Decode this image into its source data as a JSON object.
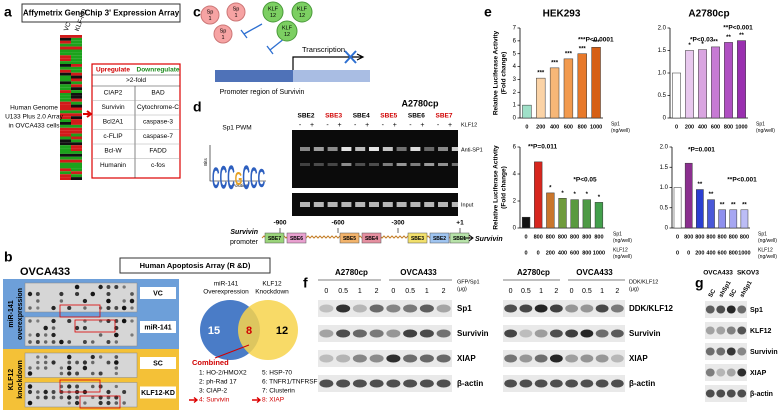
{
  "labels": [
    "a",
    "b",
    "c",
    "d",
    "e",
    "f",
    "g"
  ],
  "panel_a": {
    "title": "Affymetrix GeneChip 3' Expression Array",
    "columns": [
      "VC",
      "KLF-KD"
    ],
    "array": [
      "Human Genome",
      "U133 Plus 2.0 Array",
      "in OVCA433 cells"
    ],
    "table": {
      "header": [
        "Upregulate",
        "Downregulate"
      ],
      "header_colors": [
        "#d00000",
        "#1a8a1a"
      ],
      "threshold": ">2-fold",
      "rows": [
        [
          "CIAP2",
          "BAD"
        ],
        [
          "Survivin",
          "Cytochrome-C"
        ],
        [
          "Bcl2A1",
          "caspase-3"
        ],
        [
          "c-FLIP",
          "caspase-7"
        ],
        [
          "Bcl-W",
          "FADD"
        ],
        [
          "Humanin",
          "c-fos"
        ]
      ]
    }
  },
  "panel_b": {
    "cell_line": "OVCA433",
    "title": "Human Apoptosis Array (R &D)",
    "groups": [
      {
        "label": [
          "miR-141",
          "overexpression"
        ],
        "rows": [
          "VC",
          "miR-141"
        ],
        "color": "#6d9fd9"
      },
      {
        "label": [
          "KLF12",
          "knockdown"
        ],
        "rows": [
          "SC",
          "KLF12-KD"
        ],
        "color": "#f4c137"
      }
    ],
    "venn": {
      "sets": [
        [
          "miR-141",
          "Overexpression"
        ],
        [
          "KLF12",
          "Knockdown"
        ]
      ],
      "counts": [
        15,
        8,
        12
      ],
      "colors": [
        "#4a7cc7",
        "#f7d44c"
      ]
    },
    "combined_label": "Combined",
    "combined": [
      "1: HO-2/HMOX2",
      "2: ph-Rad 17",
      "3: CIAP-2",
      "4: Survivin",
      "5: HSP-70",
      "6: TNFR1/TNFRSF1A",
      "7: Clusterin",
      "8: XIAP"
    ],
    "highlight_color": "#d00000"
  },
  "panel_c": {
    "sp1": [
      "Sp",
      "1"
    ],
    "klf12": [
      "KLF",
      "12"
    ],
    "transcription": "Transcription",
    "promoter": "Promoter region of Survivin"
  },
  "panel_d": {
    "pwm": "Sp1 PWM",
    "logo": "CCCGCCC",
    "logo_y": "Bits",
    "logo_x": "Position",
    "cell_line": "A2780cp",
    "lanes": [
      "SBE2",
      "SBE3",
      "SBE4",
      "SBE5",
      "SBE6",
      "SBE7"
    ],
    "lane_colors": [
      "#000000",
      "#d00000",
      "#000000",
      "#d00000",
      "#000000",
      "#d00000"
    ],
    "treatment": "KLF12",
    "signs": [
      "-",
      "+"
    ],
    "blots": [
      "Anti-SP1",
      "Input"
    ],
    "promoter": {
      "gene": "Survivin",
      "label": "promoter",
      "positions": [
        "-900",
        "-600",
        "-300",
        "+1"
      ],
      "sites": [
        "SBE7",
        "SBE6",
        "SBE5",
        "SBE4",
        "SBE3",
        "SBE2",
        "SBE1"
      ]
    }
  },
  "chart_data": [
    {
      "type": "bar",
      "title": "HEK293",
      "ylabel": [
        "Relative Luciferase Activity",
        "(Fold change)"
      ],
      "categories": [
        "0",
        "200",
        "400",
        "600",
        "800",
        "1000"
      ],
      "category_title": [
        "Sp1",
        "(ng/well)"
      ],
      "values": [
        1,
        3.1,
        3.9,
        4.6,
        5.0,
        5.5
      ],
      "colors": [
        "#9fe0c8",
        "#fbd3a6",
        "#f7b777",
        "#f29a4e",
        "#e8792a",
        "#d65f15"
      ],
      "stars": [
        null,
        "***",
        "***",
        "***",
        "***",
        "***"
      ],
      "annotations": [
        "***P<0.0001"
      ],
      "ylim": [
        0,
        7
      ],
      "yticks": [
        0,
        1,
        2,
        3,
        4,
        5,
        6,
        7
      ]
    },
    {
      "type": "bar",
      "title": "A2780cp",
      "categories": [
        "0",
        "200",
        "400",
        "600",
        "800",
        "1000"
      ],
      "category_title": [
        "Sp1",
        "(ng/well)"
      ],
      "values": [
        1,
        1.5,
        1.52,
        1.58,
        1.68,
        1.72
      ],
      "colors": [
        "#ffffff",
        "#e8c8ee",
        "#d9a5e0",
        "#c77ad4",
        "#b04fc2",
        "#9a2fb0"
      ],
      "stars": [
        null,
        "*",
        "*",
        "**",
        "**",
        "**"
      ],
      "annotations": [
        "*P<0.03",
        "**P<0.001"
      ],
      "ylim": [
        0,
        2
      ],
      "yticks": [
        0,
        0.5,
        {
          "value": 1,
          "label": "1.0"
        },
        1.5,
        {
          "value": 2,
          "label": "2.0"
        }
      ]
    },
    {
      "type": "bar",
      "ylabel": [
        "Relative Luciferase Activity",
        "(Fold change)"
      ],
      "categories": [
        "0",
        "800",
        "800",
        "800",
        "800",
        "800",
        "800"
      ],
      "category_title": [
        "Sp1",
        "(ng/well)"
      ],
      "categories2": [
        "0",
        "0",
        "200",
        "400",
        "600",
        "800",
        "1000"
      ],
      "category_title2": [
        "KLF12",
        "(ng/well)"
      ],
      "values": [
        0.8,
        4.9,
        2.6,
        2.2,
        2.1,
        2.1,
        1.9
      ],
      "colors": [
        "#111111",
        "#d7261e",
        "#c9762c",
        "#6f9b3c",
        "#5a9a40",
        "#4e9a45",
        "#43a04c"
      ],
      "stars": [
        null,
        null,
        "*",
        "*",
        "*",
        "*",
        "*"
      ],
      "annotations": [
        "**P=0.011",
        "*P<0.05"
      ],
      "ylim": [
        0,
        6
      ],
      "yticks": [
        0,
        2,
        4,
        6
      ]
    },
    {
      "type": "bar",
      "categories": [
        "0",
        "800",
        "800",
        "800",
        "800",
        "800",
        "800"
      ],
      "category_title": [
        "Sp1",
        "(ng/well)"
      ],
      "categories2": [
        "0",
        "0",
        "200",
        "400",
        "600",
        "800",
        "1000"
      ],
      "category_title2": [
        "KLF12",
        "(ng/well)"
      ],
      "values": [
        1.0,
        1.6,
        0.95,
        0.7,
        0.45,
        0.45,
        0.45
      ],
      "colors": [
        "#ffffff",
        "#8b2f8f",
        "#2b3fd1",
        "#4a58d8",
        "#8f90ee",
        "#a6a6f2",
        "#bcbdf6"
      ],
      "stars": [
        null,
        null,
        "**",
        "**",
        "**",
        "**",
        "**"
      ],
      "annotations": [
        "*P=0.001",
        "**P<0.001"
      ],
      "ylim": [
        0,
        2
      ],
      "yticks": [
        0,
        0.5,
        {
          "value": 1,
          "label": "1.0"
        },
        1.5,
        {
          "value": 2,
          "label": "2.0"
        }
      ]
    }
  ],
  "panel_f": [
    {
      "cell_lines": [
        "A2780cp",
        "OVCA433"
      ],
      "doses": [
        "0",
        "0.5",
        "1",
        "2",
        "0",
        "0.5",
        "1",
        "2"
      ],
      "treatment": [
        "GFP/Sp1",
        "(μg)"
      ],
      "proteins": [
        "Sp1",
        "Survivin",
        "XIAP",
        "β-actin"
      ]
    },
    {
      "cell_lines": [
        "A2780cp",
        "OVCA433"
      ],
      "doses": [
        "0",
        "0.5",
        "1",
        "2",
        "0",
        "0.5",
        "1",
        "2"
      ],
      "treatment": [
        "DDK/KLF12",
        "(μg)"
      ],
      "proteins": [
        "DDK/KLF12",
        "Survivin",
        "XIAP",
        "β-actin"
      ]
    }
  ],
  "panel_g": {
    "cell_lines": [
      "OVCA433",
      "SKOV3"
    ],
    "lanes": [
      "SC",
      "shSp1",
      "SC",
      "shSp1"
    ],
    "proteins": [
      "Sp1",
      "KLF12",
      "Survivin",
      "XIAP",
      "β-actin"
    ]
  }
}
